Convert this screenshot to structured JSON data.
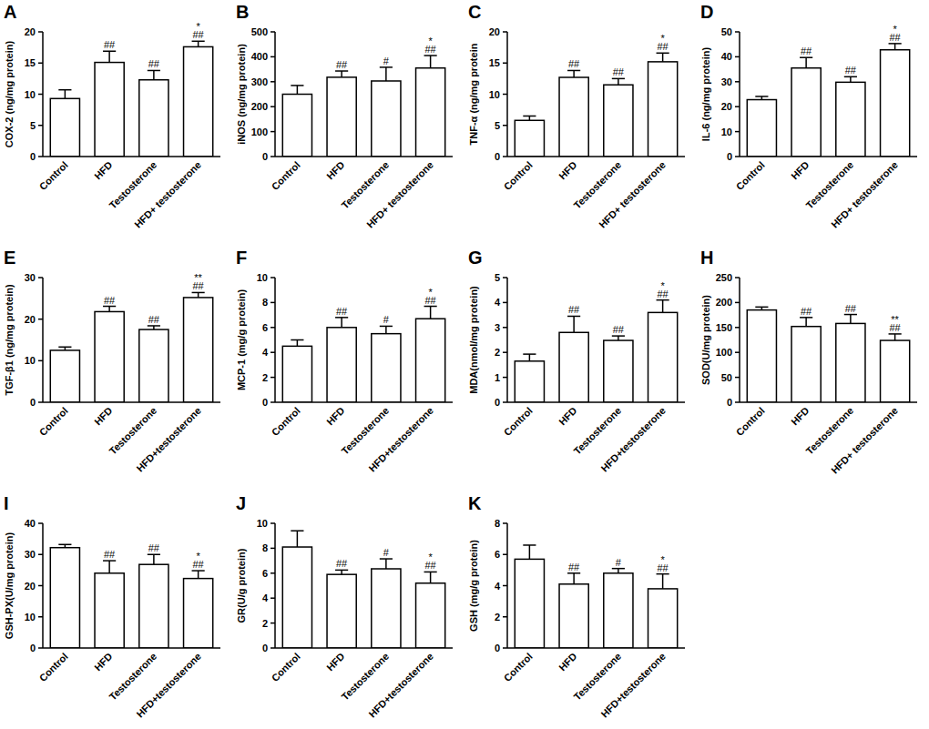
{
  "chart_data": [
    {
      "type": "bar",
      "title": "A",
      "y_label": "COX-2 (ng/mg protein)",
      "categories": [
        "Control",
        "HFD",
        "Testosterone",
        "HFD+ testosterone"
      ],
      "values": [
        9.3,
        15.1,
        12.3,
        17.6
      ],
      "errors": [
        1.4,
        1.8,
        1.5,
        0.9
      ],
      "annotations": [
        null,
        [
          "##"
        ],
        [
          "##"
        ],
        [
          "*",
          "##"
        ]
      ],
      "color": "#ffffff",
      "ylim": [
        0,
        20
      ],
      "yticks": [
        0,
        5,
        10,
        15,
        20
      ]
    },
    {
      "type": "bar",
      "title": "B",
      "y_label": "iNOS (ng/mg protein)",
      "categories": [
        "Control",
        "HFD",
        "Testosterone",
        "HFD+ testosterone"
      ],
      "values": [
        250,
        318,
        303,
        355
      ],
      "errors": [
        35,
        25,
        55,
        50
      ],
      "annotations": [
        null,
        [
          "##"
        ],
        [
          "#"
        ],
        [
          "*",
          "##"
        ]
      ],
      "color": "#ffffff",
      "ylim": [
        0,
        500
      ],
      "yticks": [
        0,
        100,
        200,
        300,
        400,
        500
      ]
    },
    {
      "type": "bar",
      "title": "C",
      "y_label": "TNF-α (ng/mg protein",
      "categories": [
        "Control",
        "HFD",
        "Testosterone",
        "HFD+ testosterone"
      ],
      "values": [
        5.8,
        12.7,
        11.5,
        15.2
      ],
      "errors": [
        0.7,
        1.1,
        1.0,
        1.4
      ],
      "annotations": [
        null,
        [
          "##"
        ],
        [
          "##"
        ],
        [
          "*",
          "##"
        ]
      ],
      "color": "#ffffff",
      "ylim": [
        0,
        20
      ],
      "yticks": [
        0,
        5,
        10,
        15,
        20
      ]
    },
    {
      "type": "bar",
      "title": "D",
      "y_label": "IL-6 (ng/mg protein)",
      "categories": [
        "Control",
        "HFD",
        "Testosterone",
        "HFD+ testosterone"
      ],
      "values": [
        22.8,
        35.5,
        29.8,
        42.8
      ],
      "errors": [
        1.3,
        4.2,
        2.2,
        2.5
      ],
      "annotations": [
        null,
        [
          "##"
        ],
        [
          "##"
        ],
        [
          "*",
          "##"
        ]
      ],
      "color": "#ffffff",
      "ylim": [
        0,
        50
      ],
      "yticks": [
        0,
        10,
        20,
        30,
        40,
        50
      ]
    },
    {
      "type": "bar",
      "title": "E",
      "y_label": "TGF-β1 (ng/mg protein)",
      "categories": [
        "Control",
        "HFD",
        "Testosterone",
        "HFD+testosterone"
      ],
      "values": [
        12.5,
        21.8,
        17.5,
        25.2
      ],
      "errors": [
        0.8,
        1.3,
        0.9,
        1.2
      ],
      "annotations": [
        null,
        [
          "##"
        ],
        [
          "##"
        ],
        [
          "**",
          "##"
        ]
      ],
      "color": "#ffffff",
      "ylim": [
        0,
        30
      ],
      "yticks": [
        0,
        10,
        20,
        30
      ]
    },
    {
      "type": "bar",
      "title": "F",
      "y_label": "MCP-1 (mg/g protein)",
      "categories": [
        "Control",
        "HFD",
        "Testosterone",
        "HFD+testosterone"
      ],
      "values": [
        4.5,
        6.0,
        5.5,
        6.7
      ],
      "errors": [
        0.5,
        0.8,
        0.6,
        1.0
      ],
      "annotations": [
        null,
        [
          "##"
        ],
        [
          "#"
        ],
        [
          "*",
          "##"
        ]
      ],
      "color": "#ffffff",
      "ylim": [
        0,
        10
      ],
      "yticks": [
        0,
        2,
        4,
        6,
        8,
        10
      ]
    },
    {
      "type": "bar",
      "title": "G",
      "y_label": "MDA(nmol/mg protein)",
      "categories": [
        "Control",
        "HFD",
        "Testosterone",
        "HFD+testosterone"
      ],
      "values": [
        1.65,
        2.8,
        2.48,
        3.6
      ],
      "errors": [
        0.28,
        0.65,
        0.18,
        0.5
      ],
      "annotations": [
        null,
        [
          "##"
        ],
        [
          "##"
        ],
        [
          "*",
          "##"
        ]
      ],
      "color": "#ffffff",
      "ylim": [
        0,
        5
      ],
      "yticks": [
        0,
        1,
        2,
        3,
        4,
        5
      ]
    },
    {
      "type": "bar",
      "title": "H",
      "y_label": "SOD(U/mg protein)",
      "categories": [
        "Control",
        "HFD",
        "Testosterone",
        "HFD+ testosterone"
      ],
      "values": [
        185,
        152,
        158,
        124
      ],
      "errors": [
        6,
        18,
        18,
        13
      ],
      "annotations": [
        null,
        [
          "##"
        ],
        [
          "##"
        ],
        [
          "**",
          "##"
        ]
      ],
      "color": "#ffffff",
      "ylim": [
        0,
        250
      ],
      "yticks": [
        0,
        50,
        100,
        150,
        200,
        250
      ]
    },
    {
      "type": "bar",
      "title": "I",
      "y_label": "GSH-PX(U/mg protein)",
      "categories": [
        "Control",
        "HFD",
        "Testosterone",
        "HFD+testosterone"
      ],
      "values": [
        32.2,
        24,
        26.8,
        22.3
      ],
      "errors": [
        1,
        4,
        3.2,
        2.5
      ],
      "annotations": [
        null,
        [
          "##"
        ],
        [
          "##"
        ],
        [
          "*",
          "##"
        ]
      ],
      "color": "#ffffff",
      "ylim": [
        0,
        40
      ],
      "yticks": [
        0,
        10,
        20,
        30,
        40
      ]
    },
    {
      "type": "bar",
      "title": "J",
      "y_label": "GR(U/g protein)",
      "categories": [
        "Control",
        "HFD",
        "Testosterone",
        "HFD+testosterone"
      ],
      "values": [
        8.1,
        5.9,
        6.35,
        5.2
      ],
      "errors": [
        1.3,
        0.35,
        0.8,
        0.9
      ],
      "annotations": [
        null,
        [
          "##"
        ],
        [
          "#"
        ],
        [
          "*",
          "##"
        ]
      ],
      "color": "#ffffff",
      "ylim": [
        0,
        10
      ],
      "yticks": [
        0,
        2,
        4,
        6,
        8,
        10
      ]
    },
    {
      "type": "bar",
      "title": "K",
      "y_label": "GSH (mg/g protein)",
      "categories": [
        "Control",
        "HFD",
        "Testosterone",
        "HFD+testosterone"
      ],
      "values": [
        5.7,
        4.1,
        4.8,
        3.8
      ],
      "errors": [
        0.9,
        0.7,
        0.3,
        0.95
      ],
      "annotations": [
        null,
        [
          "##"
        ],
        [
          "#"
        ],
        [
          "*",
          "##"
        ]
      ],
      "color": "#ffffff",
      "ylim": [
        0,
        8
      ],
      "yticks": [
        0,
        2,
        4,
        6,
        8
      ]
    }
  ]
}
